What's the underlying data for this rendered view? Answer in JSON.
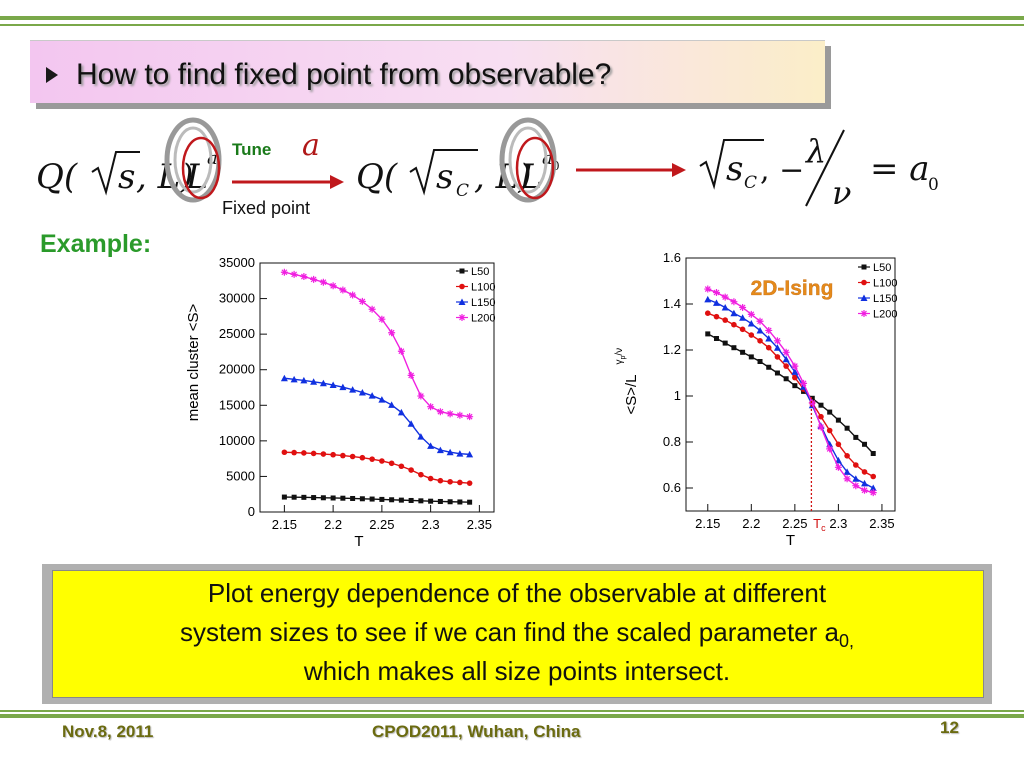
{
  "slide": {
    "title": "How to find fixed point from observable?",
    "tune_label": "Tune",
    "tune_symbol": "a",
    "fixed_point_label": "Fixed point",
    "example_label": "Example:",
    "note_lines": [
      "Plot energy dependence of  the observable at different",
      "system sizes to see if we can find the scaled parameter a",
      "which makes all size points intersect."
    ],
    "note_subscript": "0,",
    "footer": {
      "date": "Nov.8, 2011",
      "conference": "CPOD2011, Wuhan, China",
      "page": "12"
    },
    "colors": {
      "rule": "#7aa84a",
      "example": "#2a9a2a",
      "arrow": "#c0181c",
      "note_bg": "#ffff00"
    }
  },
  "equation": {
    "f1": {
      "Q": "Q(",
      "s": "s",
      "L1": ", L)",
      "L2": "L",
      "exp": "a"
    },
    "f2": {
      "Q": "Q(",
      "s": "s",
      "sub": "C",
      "L1": ", L)",
      "L2": "L",
      "exp": "a",
      "expsub": "0"
    },
    "f3": {
      "s": "s",
      "sub": "C",
      "minus": ", −",
      "lambda": "λ",
      "nu": "ν",
      "eq": "= a",
      "eqsub": "0"
    }
  },
  "chart_data": [
    {
      "type": "line",
      "title": "",
      "xlabel": "T",
      "ylabel": "mean cluster <S>",
      "xlim": [
        2.125,
        2.365
      ],
      "ylim": [
        0,
        35000
      ],
      "xticks": [
        2.15,
        2.2,
        2.25,
        2.3,
        2.35
      ],
      "yticks": [
        0,
        5000,
        10000,
        15000,
        20000,
        25000,
        30000,
        35000
      ],
      "x": [
        2.15,
        2.16,
        2.17,
        2.18,
        2.19,
        2.2,
        2.21,
        2.22,
        2.23,
        2.24,
        2.25,
        2.26,
        2.27,
        2.28,
        2.29,
        2.3,
        2.31,
        2.32,
        2.33,
        2.34
      ],
      "legend_position": "top-right",
      "series": [
        {
          "name": "L50",
          "color": "#111111",
          "marker": "square",
          "values": [
            2100,
            2080,
            2060,
            2030,
            2000,
            1970,
            1940,
            1900,
            1860,
            1820,
            1770,
            1720,
            1670,
            1620,
            1570,
            1520,
            1480,
            1440,
            1410,
            1380
          ]
        },
        {
          "name": "L100",
          "color": "#e01010",
          "marker": "circle",
          "values": [
            8400,
            8350,
            8300,
            8230,
            8150,
            8050,
            7930,
            7800,
            7630,
            7430,
            7170,
            6850,
            6430,
            5900,
            5250,
            4700,
            4400,
            4250,
            4150,
            4050
          ]
        },
        {
          "name": "L150",
          "color": "#1030e0",
          "marker": "triangle",
          "values": [
            18800,
            18650,
            18500,
            18300,
            18100,
            17850,
            17550,
            17200,
            16800,
            16350,
            15800,
            15050,
            14000,
            12400,
            10600,
            9300,
            8700,
            8400,
            8200,
            8100
          ]
        },
        {
          "name": "L200",
          "color": "#f020e0",
          "marker": "star",
          "values": [
            33700,
            33400,
            33100,
            32700,
            32300,
            31800,
            31200,
            30500,
            29600,
            28500,
            27100,
            25200,
            22600,
            19200,
            16300,
            14800,
            14100,
            13800,
            13600,
            13400
          ]
        }
      ]
    },
    {
      "type": "line",
      "title": "2D-Ising",
      "xlabel": "T",
      "ylabel": "<S>/L",
      "ylabel_exp": "γ",
      "ylabel_exp_sub": "p",
      "ylabel_exp_tail": "/ν",
      "xlim": [
        2.125,
        2.365
      ],
      "ylim": [
        0.5,
        1.6
      ],
      "xticks": [
        2.15,
        2.2,
        2.25,
        2.3,
        2.35
      ],
      "yticks": [
        0.6,
        0.8,
        1,
        1.2,
        1.4,
        1.6
      ],
      "tc_label": "T",
      "tc_sub": "c",
      "tc_value": 2.269,
      "x": [
        2.15,
        2.16,
        2.17,
        2.18,
        2.19,
        2.2,
        2.21,
        2.22,
        2.23,
        2.24,
        2.25,
        2.26,
        2.27,
        2.28,
        2.29,
        2.3,
        2.31,
        2.32,
        2.33,
        2.34
      ],
      "legend_position": "top-right",
      "series": [
        {
          "name": "L50",
          "color": "#111111",
          "marker": "square",
          "values": [
            1.27,
            1.25,
            1.23,
            1.21,
            1.19,
            1.17,
            1.15,
            1.125,
            1.1,
            1.075,
            1.045,
            1.02,
            0.99,
            0.96,
            0.93,
            0.895,
            0.86,
            0.82,
            0.79,
            0.75
          ]
        },
        {
          "name": "L100",
          "color": "#e01010",
          "marker": "circle",
          "values": [
            1.36,
            1.345,
            1.33,
            1.31,
            1.29,
            1.265,
            1.24,
            1.21,
            1.17,
            1.13,
            1.08,
            1.03,
            0.97,
            0.91,
            0.85,
            0.79,
            0.74,
            0.7,
            0.67,
            0.65
          ]
        },
        {
          "name": "L150",
          "color": "#1030e0",
          "marker": "triangle",
          "values": [
            1.42,
            1.405,
            1.385,
            1.36,
            1.34,
            1.315,
            1.285,
            1.25,
            1.21,
            1.16,
            1.105,
            1.04,
            0.96,
            0.87,
            0.79,
            0.72,
            0.67,
            0.64,
            0.62,
            0.6
          ]
        },
        {
          "name": "L200",
          "color": "#f020e0",
          "marker": "star",
          "values": [
            1.465,
            1.45,
            1.43,
            1.41,
            1.385,
            1.355,
            1.325,
            1.285,
            1.24,
            1.19,
            1.13,
            1.055,
            0.97,
            0.865,
            0.77,
            0.69,
            0.64,
            0.61,
            0.59,
            0.58
          ]
        }
      ]
    }
  ]
}
